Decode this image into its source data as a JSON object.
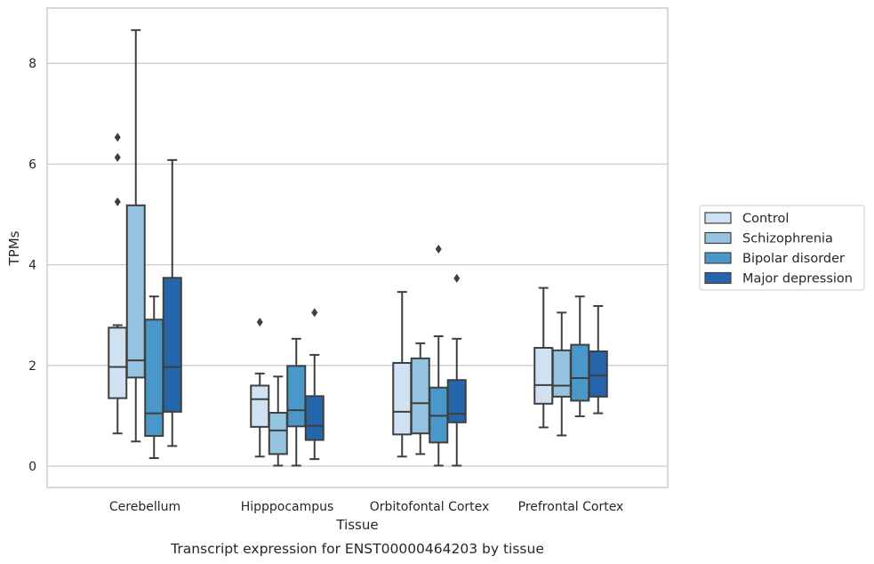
{
  "caption": "Transcript expression for ENST00000464203 by tissue",
  "chart_data": {
    "type": "box",
    "title": "",
    "xlabel": "Tissue",
    "ylabel": "TPMs",
    "ylim": [
      -0.4,
      9.1
    ],
    "yticks": [
      0,
      2,
      4,
      6,
      8
    ],
    "grid": "horizontal",
    "legend_position": "right",
    "categories": [
      "Cerebellum",
      "Hipppocampus",
      "Orbitofontal Cortex",
      "Prefrontal Cortex"
    ],
    "series": [
      {
        "name": "Control",
        "color": "#d0e1f2",
        "boxes": [
          {
            "whislo": 0.65,
            "q1": 1.35,
            "med": 1.97,
            "q3": 2.75,
            "whishi": 2.8,
            "fliers": [
              5.25,
              6.13,
              6.53
            ]
          },
          {
            "whislo": 0.19,
            "q1": 0.78,
            "med": 1.33,
            "q3": 1.6,
            "whishi": 1.84,
            "fliers": [
              2.86
            ]
          },
          {
            "whislo": 0.19,
            "q1": 0.63,
            "med": 1.08,
            "q3": 2.05,
            "whishi": 3.46,
            "fliers": []
          },
          {
            "whislo": 0.77,
            "q1": 1.24,
            "med": 1.61,
            "q3": 2.35,
            "whishi": 3.54,
            "fliers": []
          }
        ]
      },
      {
        "name": "Schizophrenia",
        "color": "#94c4df",
        "boxes": [
          {
            "whislo": 0.49,
            "q1": 1.76,
            "med": 2.1,
            "q3": 5.18,
            "whishi": 8.66,
            "fliers": []
          },
          {
            "whislo": 0.01,
            "q1": 0.24,
            "med": 0.71,
            "q3": 1.06,
            "whishi": 1.78,
            "fliers": []
          },
          {
            "whislo": 0.24,
            "q1": 0.65,
            "med": 1.25,
            "q3": 2.14,
            "whishi": 2.44,
            "fliers": []
          },
          {
            "whislo": 0.61,
            "q1": 1.38,
            "med": 1.6,
            "q3": 2.3,
            "whishi": 3.05,
            "fliers": []
          }
        ]
      },
      {
        "name": "Bipolar disorder",
        "color": "#4a98c9",
        "boxes": [
          {
            "whislo": 0.16,
            "q1": 0.6,
            "med": 1.05,
            "q3": 2.91,
            "whishi": 3.37,
            "fliers": []
          },
          {
            "whislo": 0.01,
            "q1": 0.79,
            "med": 1.11,
            "q3": 1.99,
            "whishi": 2.53,
            "fliers": []
          },
          {
            "whislo": 0.01,
            "q1": 0.47,
            "med": 1.0,
            "q3": 1.56,
            "whishi": 2.58,
            "fliers": [
              4.31
            ]
          },
          {
            "whislo": 0.99,
            "q1": 1.3,
            "med": 1.75,
            "q3": 2.41,
            "whishi": 3.37,
            "fliers": []
          }
        ]
      },
      {
        "name": "Major depression",
        "color": "#2565a9",
        "boxes": [
          {
            "whislo": 0.4,
            "q1": 1.08,
            "med": 1.97,
            "q3": 3.74,
            "whishi": 6.08,
            "fliers": []
          },
          {
            "whislo": 0.14,
            "q1": 0.52,
            "med": 0.8,
            "q3": 1.39,
            "whishi": 2.21,
            "fliers": [
              3.05
            ]
          },
          {
            "whislo": 0.01,
            "q1": 0.87,
            "med": 1.04,
            "q3": 1.71,
            "whishi": 2.53,
            "fliers": [
              3.73
            ]
          },
          {
            "whislo": 1.05,
            "q1": 1.38,
            "med": 1.8,
            "q3": 2.28,
            "whishi": 3.18,
            "fliers": []
          }
        ]
      }
    ]
  }
}
